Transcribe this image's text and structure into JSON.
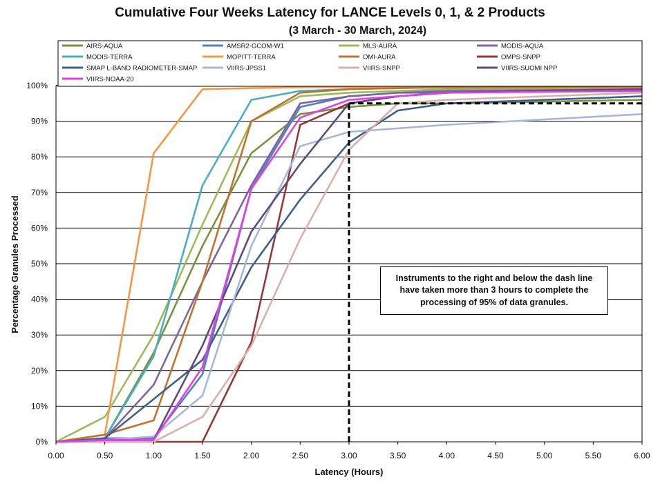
{
  "chart_data": {
    "type": "line",
    "title": "Cumulative Four Weeks Latency  for LANCE Levels 0, 1, & 2 Products",
    "subtitle": "(3  March   -  30  March,  2024)",
    "xlabel": "Latency (Hours)",
    "ylabel": "Percentage Granules Processed",
    "x": [
      0.0,
      0.5,
      1.0,
      1.5,
      2.0,
      2.5,
      3.0,
      3.5,
      4.0,
      6.0
    ],
    "xticks": [
      "0.00",
      "0.50",
      "1.00",
      "1.50",
      "2.00",
      "2.50",
      "3.00",
      "3.50",
      "4.00",
      "4.50",
      "5.00",
      "5.50",
      "6.00"
    ],
    "yticks": [
      "0%",
      "10%",
      "20%",
      "30%",
      "40%",
      "50%",
      "60%",
      "70%",
      "80%",
      "90%",
      "100%"
    ],
    "xlim": [
      0,
      6
    ],
    "ylim": [
      0,
      100
    ],
    "grid": "horizontal",
    "legend": "top",
    "series": [
      {
        "name": "AIRS-AQUA",
        "color": "#77933C",
        "values": [
          0,
          1,
          25,
          55,
          81,
          92,
          94,
          95,
          95,
          96
        ]
      },
      {
        "name": "AMSR2-GCOM-W1",
        "color": "#4F81BD",
        "values": [
          0,
          1,
          1,
          19,
          71,
          94,
          97,
          98,
          98,
          99
        ]
      },
      {
        "name": "MLS-AURA",
        "color": "#9BBB59",
        "values": [
          0,
          7,
          30,
          61,
          90,
          97,
          98,
          98.5,
          99,
          99.5
        ]
      },
      {
        "name": "MODIS-AQUA",
        "color": "#8064A2",
        "values": [
          0,
          1,
          16,
          45,
          72,
          95,
          97,
          98,
          98.5,
          99
        ]
      },
      {
        "name": "MODIS-TERRA",
        "color": "#4BACC6",
        "values": [
          0,
          1,
          24,
          72,
          96,
          98.5,
          99,
          99.3,
          99.5,
          99.8
        ]
      },
      {
        "name": "MOPITT-TERRA",
        "color": "#F79646",
        "values": [
          0,
          2,
          81,
          99,
          99.3,
          99.5,
          99.6,
          99.7,
          99.8,
          99.9
        ]
      },
      {
        "name": "OMI-AURA",
        "color": "#C0712F",
        "values": [
          0,
          2,
          6,
          45,
          90,
          98,
          99,
          99.3,
          99.5,
          99.7
        ]
      },
      {
        "name": "OMPS-SNPP",
        "color": "#953735",
        "values": [
          0,
          0,
          0,
          0,
          28,
          89,
          95,
          97,
          98,
          99
        ]
      },
      {
        "name": "SMAP L-BAND RADIOMETER-SMAP",
        "color": "#3F5F8A",
        "values": [
          0,
          1,
          12,
          23,
          49,
          68,
          84,
          93,
          95,
          97
        ]
      },
      {
        "name": "VIIRS-JPSS1",
        "color": "#A6B8D8",
        "values": [
          0,
          0.5,
          1.5,
          13,
          55,
          83,
          87,
          88,
          89,
          92
        ]
      },
      {
        "name": "VIIRS-SNPP",
        "color": "#D9B0A8",
        "values": [
          0,
          0,
          0,
          7,
          27,
          57,
          82,
          95,
          96,
          98
        ]
      },
      {
        "name": "VIIRS-SUOMI NPP",
        "color": "#604A7B",
        "values": [
          0,
          0.5,
          0.5,
          27,
          59,
          78,
          95,
          97,
          98,
          99
        ]
      },
      {
        "name": "VIIRS-NOAA-20",
        "color": "#E040E8",
        "values": [
          0,
          0.5,
          0.5,
          21,
          71,
          91,
          96,
          97,
          98,
          98.5
        ]
      }
    ],
    "threshold": {
      "x": 3.0,
      "y": 95,
      "style": "dashed",
      "color": "#000000"
    },
    "annotation": "Instruments to the right and below the dash line have taken more than 3 hours to complete the processing of 95% of data granules."
  }
}
